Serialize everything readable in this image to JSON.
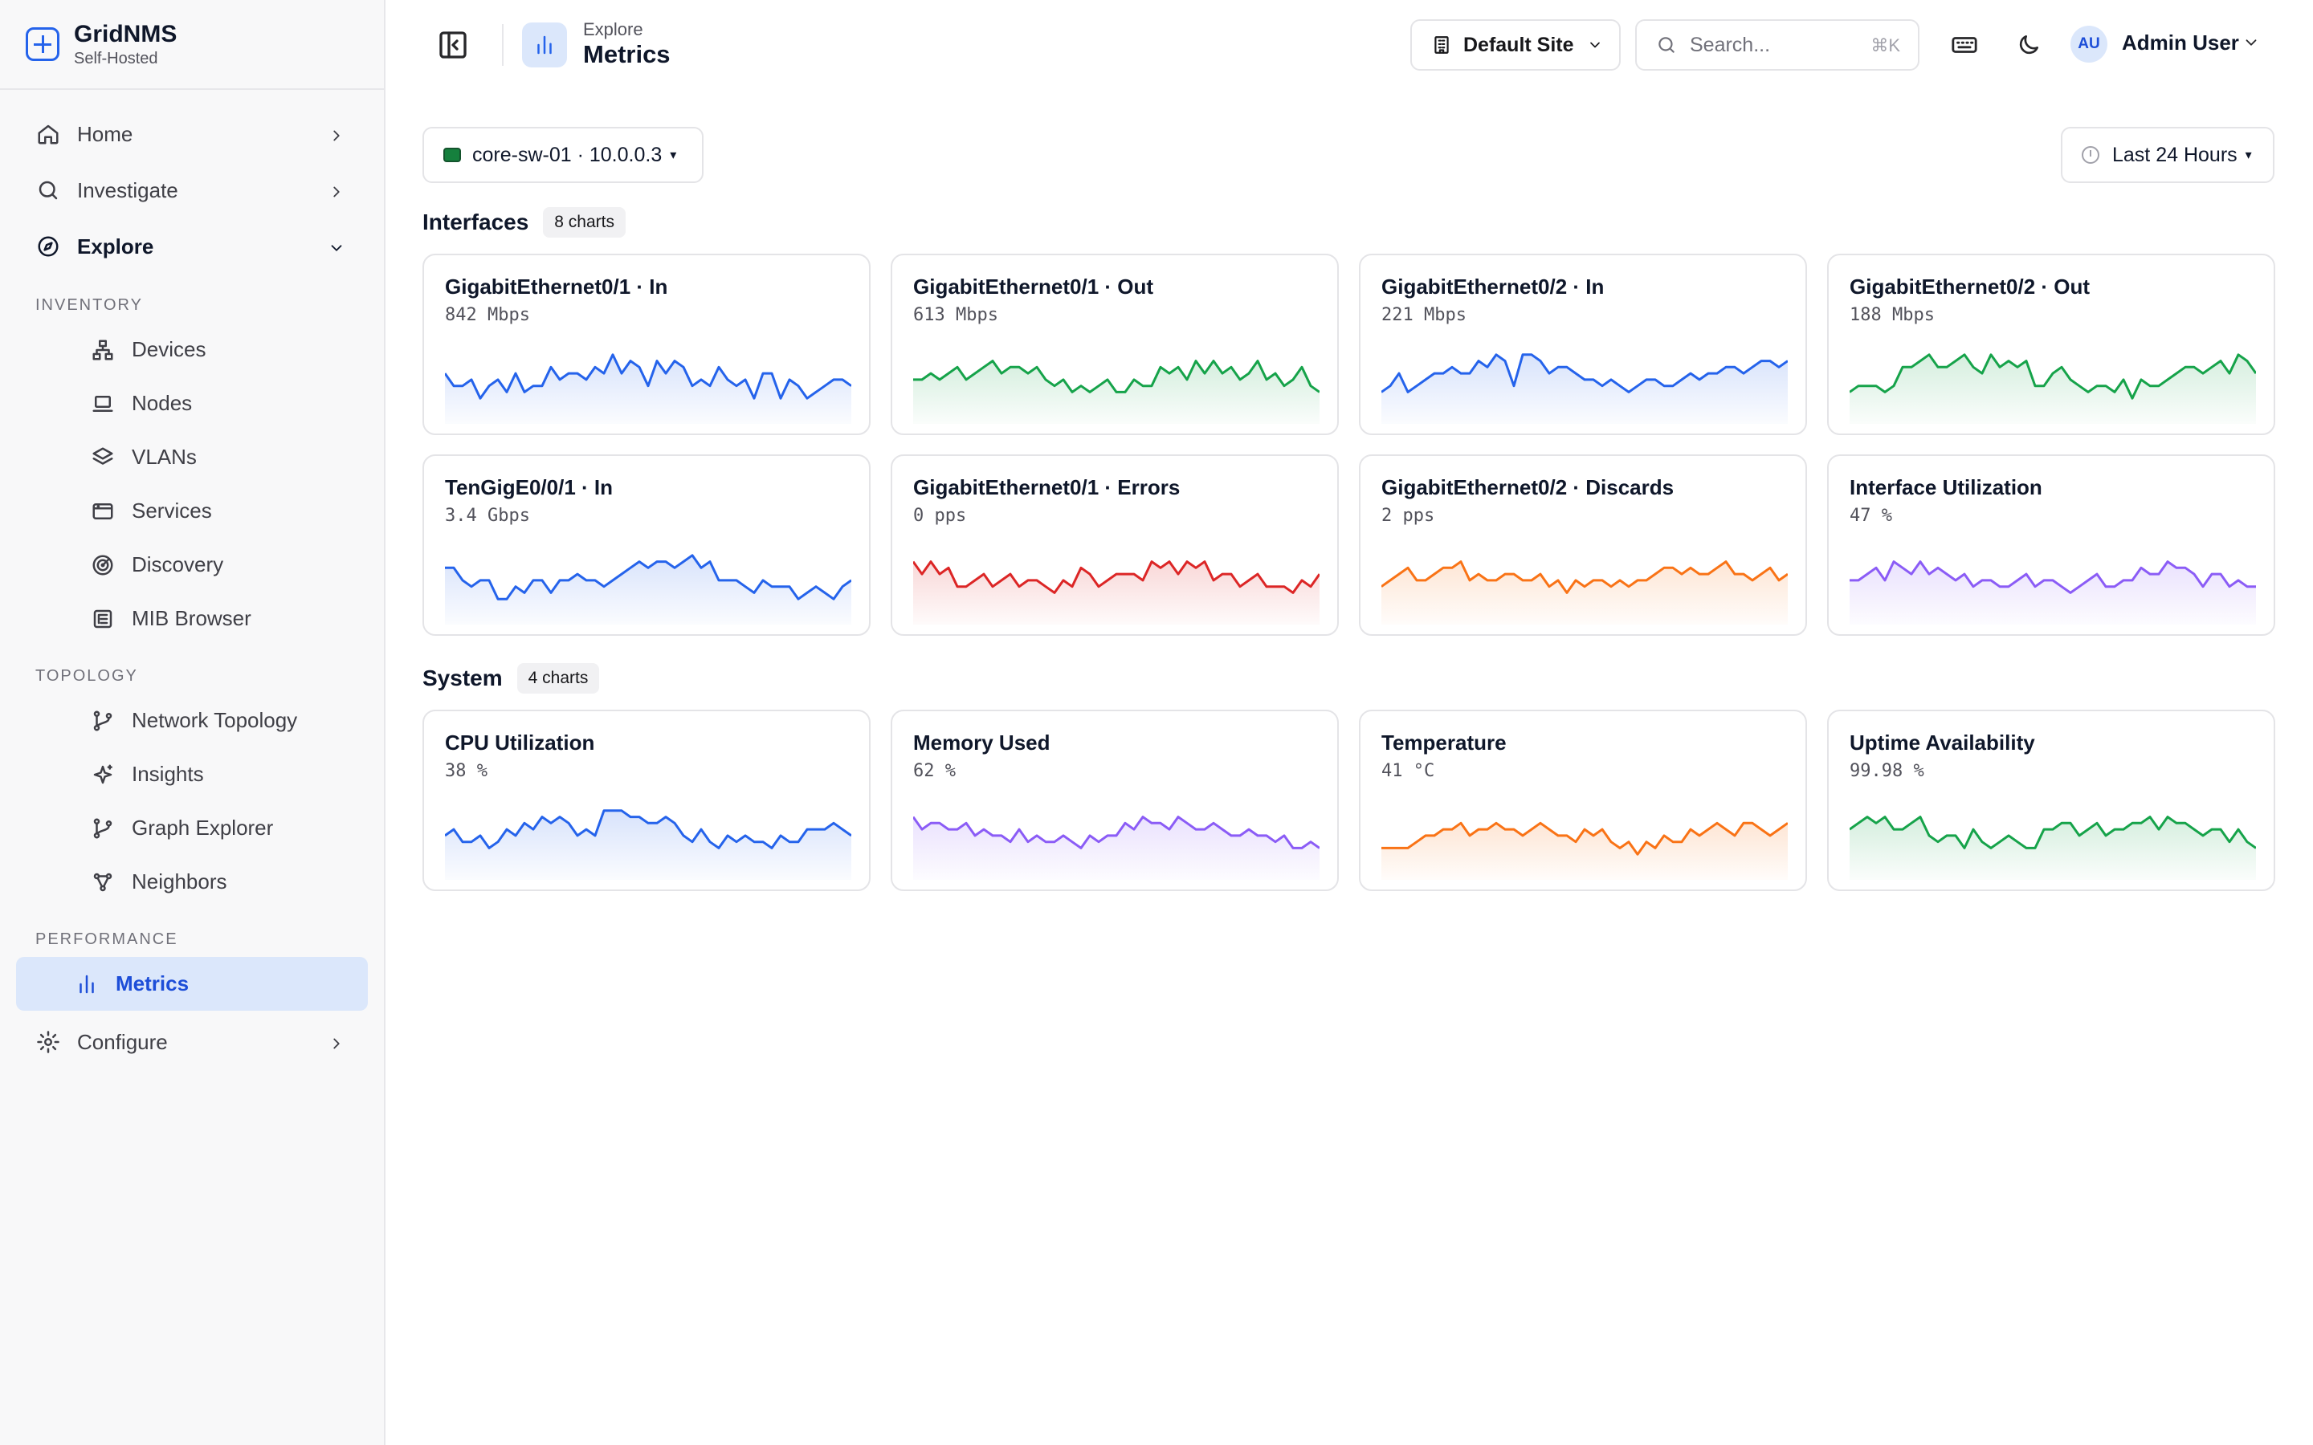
{
  "brand": {
    "name": "GridNMS",
    "sub": "Self-Hosted"
  },
  "nav": {
    "home": "Home",
    "investigate": "Investigate",
    "explore": "Explore",
    "configure": "Configure",
    "sections": {
      "inventory": "INVENTORY",
      "topology": "TOPOLOGY",
      "performance": "PERFORMANCE"
    },
    "inventory_items": [
      "Devices",
      "Nodes",
      "VLANs",
      "Services",
      "Discovery",
      "MIB Browser"
    ],
    "topology_items": [
      "Network Topology",
      "Insights",
      "Graph Explorer",
      "Neighbors"
    ],
    "performance_items": [
      "Metrics"
    ]
  },
  "header": {
    "section": "Explore",
    "title": "Metrics",
    "site": "Default Site",
    "search_placeholder": "Search...",
    "search_shortcut": "⌘K",
    "user_initials": "AU",
    "user_name": "Admin User"
  },
  "toolbar": {
    "device": "core-sw-01 · 10.0.0.3",
    "caret": "▾",
    "time_range": "Last 24 Hours"
  },
  "groups": {
    "interfaces": {
      "title": "Interfaces",
      "count": "8 charts"
    },
    "system": {
      "title": "System",
      "count": "4 charts"
    }
  },
  "colors": {
    "blue": "#2563eb",
    "green": "#16a34a",
    "red": "#dc2626",
    "orange": "#f97316",
    "purple": "#8b5cf6",
    "accent": "#2563eb"
  },
  "charts": [
    {
      "title": "GigabitEthernet0/1 · In",
      "value": "842 Mbps",
      "color": "blue",
      "series": [
        5,
        3,
        3,
        4,
        1,
        3,
        4,
        2,
        5,
        2,
        3,
        3,
        6,
        4,
        5,
        5,
        4,
        6,
        5,
        8,
        5,
        7,
        6,
        3,
        7,
        5,
        7,
        6,
        3,
        4,
        3,
        6,
        4,
        3,
        4,
        1,
        5,
        5,
        1,
        4,
        3,
        1,
        2,
        3,
        4,
        4,
        3
      ]
    },
    {
      "title": "GigabitEthernet0/1 · Out",
      "value": "613 Mbps",
      "color": "green",
      "series": [
        4,
        4,
        5,
        4,
        5,
        6,
        4,
        5,
        6,
        7,
        5,
        6,
        6,
        5,
        6,
        4,
        3,
        4,
        2,
        3,
        2,
        3,
        4,
        2,
        2,
        4,
        3,
        3,
        6,
        5,
        6,
        4,
        7,
        5,
        7,
        5,
        6,
        4,
        5,
        7,
        4,
        5,
        3,
        4,
        6,
        3,
        2
      ]
    },
    {
      "title": "GigabitEthernet0/2 · In",
      "value": "221 Mbps",
      "color": "blue",
      "series": [
        2,
        3,
        5,
        2,
        3,
        4,
        5,
        5,
        6,
        5,
        5,
        7,
        6,
        8,
        7,
        3,
        8,
        8,
        7,
        5,
        6,
        6,
        5,
        4,
        4,
        3,
        4,
        3,
        2,
        3,
        4,
        4,
        3,
        3,
        4,
        5,
        4,
        5,
        5,
        6,
        6,
        5,
        6,
        7,
        7,
        6,
        7
      ]
    },
    {
      "title": "GigabitEthernet0/2 · Out",
      "value": "188 Mbps",
      "color": "green",
      "series": [
        2,
        3,
        3,
        3,
        2,
        3,
        6,
        6,
        7,
        8,
        6,
        6,
        7,
        8,
        6,
        5,
        8,
        6,
        7,
        6,
        7,
        3,
        3,
        5,
        6,
        4,
        3,
        2,
        3,
        3,
        2,
        4,
        1,
        4,
        3,
        3,
        4,
        5,
        6,
        6,
        5,
        6,
        7,
        5,
        8,
        7,
        5
      ]
    },
    {
      "title": "TenGigE0/0/1 · In",
      "value": "3.4 Gbps",
      "color": "blue",
      "series": [
        6,
        6,
        4,
        3,
        4,
        4,
        1,
        1,
        3,
        2,
        4,
        4,
        2,
        4,
        4,
        5,
        4,
        4,
        3,
        4,
        5,
        6,
        7,
        6,
        7,
        7,
        6,
        7,
        8,
        6,
        7,
        4,
        4,
        4,
        3,
        2,
        4,
        3,
        3,
        3,
        1,
        2,
        3,
        2,
        1,
        3,
        4
      ]
    },
    {
      "title": "GigabitEthernet0/1 · Errors",
      "value": "0 pps",
      "color": "red",
      "series": [
        7,
        5,
        7,
        5,
        6,
        3,
        3,
        4,
        5,
        3,
        4,
        5,
        3,
        4,
        4,
        3,
        2,
        4,
        3,
        6,
        5,
        3,
        4,
        5,
        5,
        5,
        4,
        7,
        6,
        7,
        5,
        7,
        6,
        7,
        4,
        5,
        5,
        3,
        4,
        5,
        3,
        3,
        3,
        2,
        4,
        3,
        5
      ]
    },
    {
      "title": "GigabitEthernet0/2 · Discards",
      "value": "2 pps",
      "color": "orange",
      "series": [
        3,
        4,
        5,
        6,
        4,
        4,
        5,
        6,
        6,
        7,
        4,
        5,
        4,
        4,
        5,
        5,
        4,
        4,
        5,
        3,
        4,
        2,
        4,
        3,
        4,
        4,
        3,
        4,
        3,
        4,
        4,
        5,
        6,
        6,
        5,
        6,
        5,
        5,
        6,
        7,
        5,
        5,
        4,
        5,
        6,
        4,
        5
      ]
    },
    {
      "title": "Interface Utilization",
      "value": "47 %",
      "color": "purple",
      "series": [
        4,
        4,
        5,
        6,
        4,
        7,
        6,
        5,
        7,
        5,
        6,
        5,
        4,
        5,
        3,
        4,
        4,
        3,
        3,
        4,
        5,
        3,
        4,
        4,
        3,
        2,
        3,
        4,
        5,
        3,
        3,
        4,
        4,
        6,
        5,
        5,
        7,
        6,
        6,
        5,
        3,
        5,
        5,
        3,
        4,
        3,
        3
      ]
    }
  ],
  "system_charts": [
    {
      "title": "CPU Utilization",
      "value": "38 %",
      "color": "blue",
      "series": [
        4,
        5,
        3,
        3,
        4,
        2,
        3,
        5,
        4,
        6,
        5,
        7,
        6,
        7,
        6,
        4,
        5,
        4,
        8,
        8,
        8,
        7,
        7,
        6,
        6,
        7,
        6,
        4,
        3,
        5,
        3,
        2,
        4,
        3,
        4,
        3,
        3,
        2,
        4,
        3,
        3,
        5,
        5,
        5,
        6,
        5,
        4
      ]
    },
    {
      "title": "Memory Used",
      "value": "62 %",
      "color": "purple",
      "series": [
        7,
        5,
        6,
        6,
        5,
        5,
        6,
        4,
        5,
        4,
        4,
        3,
        5,
        3,
        4,
        3,
        3,
        4,
        3,
        2,
        4,
        3,
        4,
        4,
        6,
        5,
        7,
        6,
        6,
        5,
        7,
        6,
        5,
        5,
        6,
        5,
        4,
        4,
        5,
        4,
        4,
        3,
        4,
        2,
        2,
        3,
        2
      ]
    },
    {
      "title": "Temperature",
      "value": "41 °C",
      "color": "orange",
      "series": [
        2,
        2,
        2,
        2,
        3,
        4,
        4,
        5,
        5,
        6,
        4,
        5,
        5,
        6,
        5,
        5,
        4,
        5,
        6,
        5,
        4,
        4,
        3,
        5,
        4,
        5,
        3,
        2,
        3,
        1,
        3,
        2,
        4,
        3,
        3,
        5,
        4,
        5,
        6,
        5,
        4,
        6,
        6,
        5,
        4,
        5,
        6
      ]
    },
    {
      "title": "Uptime Availability",
      "value": "99.98 %",
      "color": "green",
      "series": [
        5,
        6,
        7,
        6,
        7,
        5,
        5,
        6,
        7,
        4,
        3,
        4,
        4,
        2,
        5,
        3,
        2,
        3,
        4,
        3,
        2,
        2,
        5,
        5,
        6,
        6,
        4,
        5,
        6,
        4,
        5,
        5,
        6,
        6,
        7,
        5,
        7,
        6,
        6,
        5,
        4,
        5,
        5,
        3,
        5,
        3,
        2
      ]
    }
  ]
}
